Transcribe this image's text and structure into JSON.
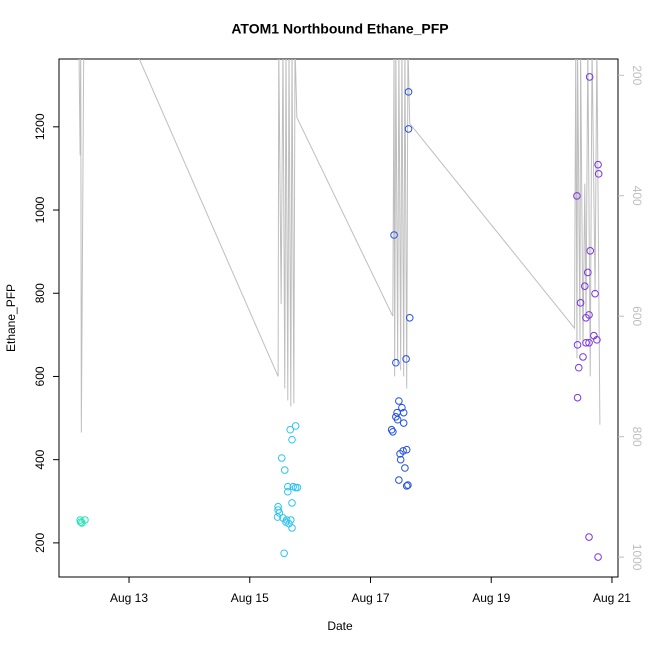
{
  "chart_data": {
    "type": "scatter",
    "title": "ATOM1 Northbound Ethane_PFP",
    "x_label": "Date",
    "y_label": "Ethane_PFP",
    "xlim": [
      11.84,
      21.1
    ],
    "xticks": [
      {
        "value": 13,
        "label": "Aug 13"
      },
      {
        "value": 15,
        "label": "Aug 15"
      },
      {
        "value": 17,
        "label": "Aug 17"
      },
      {
        "value": 19,
        "label": "Aug 19"
      },
      {
        "value": 21,
        "label": "Aug 21"
      }
    ],
    "ylim": [
      118,
      1363
    ],
    "yticks": [
      200,
      400,
      600,
      800,
      1000,
      1200
    ],
    "y2lim": [
      1033,
      173
    ],
    "y2ticks": [
      200,
      400,
      600,
      800,
      1000
    ],
    "y2_color": "#bebebe",
    "series": [
      {
        "type": "line",
        "axis": "y2",
        "color": "#bebebe",
        "x": [
          12.17,
          12.19,
          12.2,
          12.21,
          12.25,
          13.07,
          15.47,
          15.48,
          15.52,
          15.55,
          15.58,
          15.6,
          15.63,
          15.65,
          15.68,
          15.7,
          15.73,
          15.75,
          15.78,
          17.37,
          17.39,
          17.4,
          17.42,
          17.45,
          17.47,
          17.5,
          17.52,
          17.55,
          17.57,
          17.6,
          17.62,
          17.65,
          20.38,
          20.4,
          20.42,
          20.43,
          20.47,
          20.48,
          20.52,
          20.55,
          20.57,
          20.6,
          20.64,
          20.67,
          20.72,
          20.75,
          20.8
        ],
        "values": [
          150,
          333,
          150,
          793,
          150,
          150,
          700,
          150,
          580,
          150,
          720,
          150,
          740,
          150,
          750,
          150,
          745,
          150,
          270,
          600,
          150,
          700,
          150,
          680,
          150,
          690,
          150,
          700,
          150,
          720,
          150,
          280,
          620,
          150,
          670,
          150,
          640,
          150,
          650,
          380,
          600,
          150,
          700,
          150,
          560,
          150,
          780
        ]
      },
      {
        "type": "scatter",
        "color": "#1fe6b4",
        "x": [
          12.19,
          12.22,
          12.27,
          12.2
        ],
        "values": [
          255,
          248,
          255,
          250
        ]
      },
      {
        "type": "scatter",
        "color": "#2fc4f2",
        "x": [
          15.47,
          15.47,
          15.49,
          15.53,
          15.57,
          15.58,
          15.63,
          15.67,
          15.7,
          15.76,
          15.7,
          15.72,
          15.76,
          15.79,
          15.63,
          15.46,
          15.55,
          15.61,
          15.68,
          15.65,
          15.7,
          15.6
        ],
        "values": [
          287,
          279,
          272,
          404,
          175,
          375,
          335,
          472,
          448,
          481,
          296,
          335,
          333,
          333,
          323,
          262,
          260,
          255,
          255,
          246,
          236,
          250
        ]
      },
      {
        "type": "scatter",
        "color": "#2350e6",
        "x": [
          17.39,
          17.42,
          17.35,
          17.37,
          17.42,
          17.44,
          17.47,
          17.52,
          17.55,
          17.45,
          17.55,
          17.49,
          17.5,
          17.54,
          17.6,
          17.57,
          17.47,
          17.62,
          17.6,
          17.59,
          17.65,
          17.63,
          17.63
        ],
        "values": [
          940,
          633,
          472,
          467,
          503,
          513,
          541,
          525,
          513,
          496,
          488,
          414,
          400,
          421,
          424,
          380,
          351,
          339,
          337,
          642,
          741,
          1195,
          1284
        ]
      },
      {
        "type": "scatter",
        "color": "#7a34e6",
        "x": [
          20.42,
          20.43,
          20.45,
          20.43,
          20.48,
          20.55,
          20.6,
          20.57,
          20.62,
          20.52,
          20.57,
          20.62,
          20.64,
          20.7,
          20.72,
          20.75,
          20.78,
          20.77,
          20.63,
          20.62,
          20.77
        ],
        "values": [
          1034,
          549,
          621,
          676,
          777,
          817,
          850,
          741,
          748,
          647,
          681,
          681,
          902,
          698,
          799,
          688,
          1087,
          1109,
          1320,
          214,
          166
        ]
      }
    ]
  }
}
